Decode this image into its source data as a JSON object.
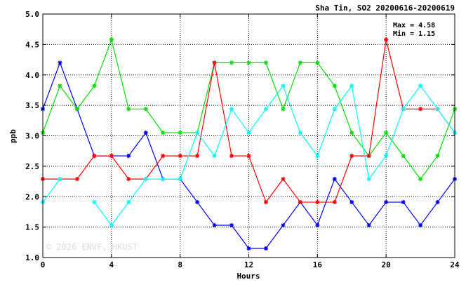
{
  "chart_data": {
    "type": "line",
    "title": "Sha Tin, SO2 20200616-20200619",
    "xlabel": "Hours",
    "ylabel": "ppb",
    "xlim": [
      0,
      24
    ],
    "ylim": [
      1.0,
      5.0
    ],
    "xticks": [
      0,
      4,
      8,
      12,
      16,
      20,
      24
    ],
    "yticks": [
      1.0,
      1.5,
      2.0,
      2.5,
      3.0,
      3.5,
      4.0,
      4.5,
      5.0
    ],
    "grid": true,
    "marker": "asterisk",
    "stats": {
      "max": "Max = 4.58",
      "min": "Min = 1.15"
    },
    "watermark": "© 2026  ENVF, HKUST",
    "x": [
      0,
      1,
      2,
      3,
      4,
      5,
      6,
      7,
      8,
      9,
      10,
      11,
      12,
      13,
      14,
      15,
      16,
      17,
      18,
      19,
      20,
      21,
      22,
      23,
      24
    ],
    "series": [
      {
        "color": "#0000ff",
        "values": [
          3.44,
          4.2,
          3.44,
          2.67,
          2.67,
          2.67,
          3.05,
          2.29,
          2.29,
          1.91,
          1.53,
          1.53,
          1.15,
          1.15,
          1.53,
          1.91,
          1.53,
          2.29,
          1.91,
          1.53,
          1.91,
          1.91,
          1.53,
          1.91,
          2.29
        ]
      },
      {
        "color": "#00e000",
        "values": [
          3.05,
          3.82,
          3.44,
          3.82,
          4.58,
          3.44,
          3.44,
          3.05,
          3.05,
          3.05,
          4.2,
          4.2,
          4.2,
          4.2,
          3.44,
          4.2,
          4.2,
          3.82,
          3.05,
          2.67,
          3.05,
          2.67,
          2.29,
          2.67,
          3.44
        ]
      },
      {
        "color": "#ff0000",
        "values": [
          2.29,
          2.29,
          2.29,
          2.67,
          2.67,
          2.29,
          2.29,
          2.67,
          2.67,
          2.67,
          4.2,
          2.67,
          2.67,
          1.91,
          2.29,
          1.91,
          1.91,
          1.91,
          2.67,
          2.67,
          4.58,
          3.44,
          3.44,
          3.44,
          3.05
        ]
      },
      {
        "color": "#00ffff",
        "values": [
          1.91,
          2.29,
          null,
          1.91,
          1.53,
          1.91,
          2.29,
          2.29,
          2.29,
          3.05,
          2.67,
          3.44,
          3.05,
          3.44,
          3.82,
          3.05,
          2.67,
          3.44,
          3.82,
          2.29,
          2.67,
          3.44,
          3.82,
          3.44,
          3.05
        ]
      }
    ]
  }
}
